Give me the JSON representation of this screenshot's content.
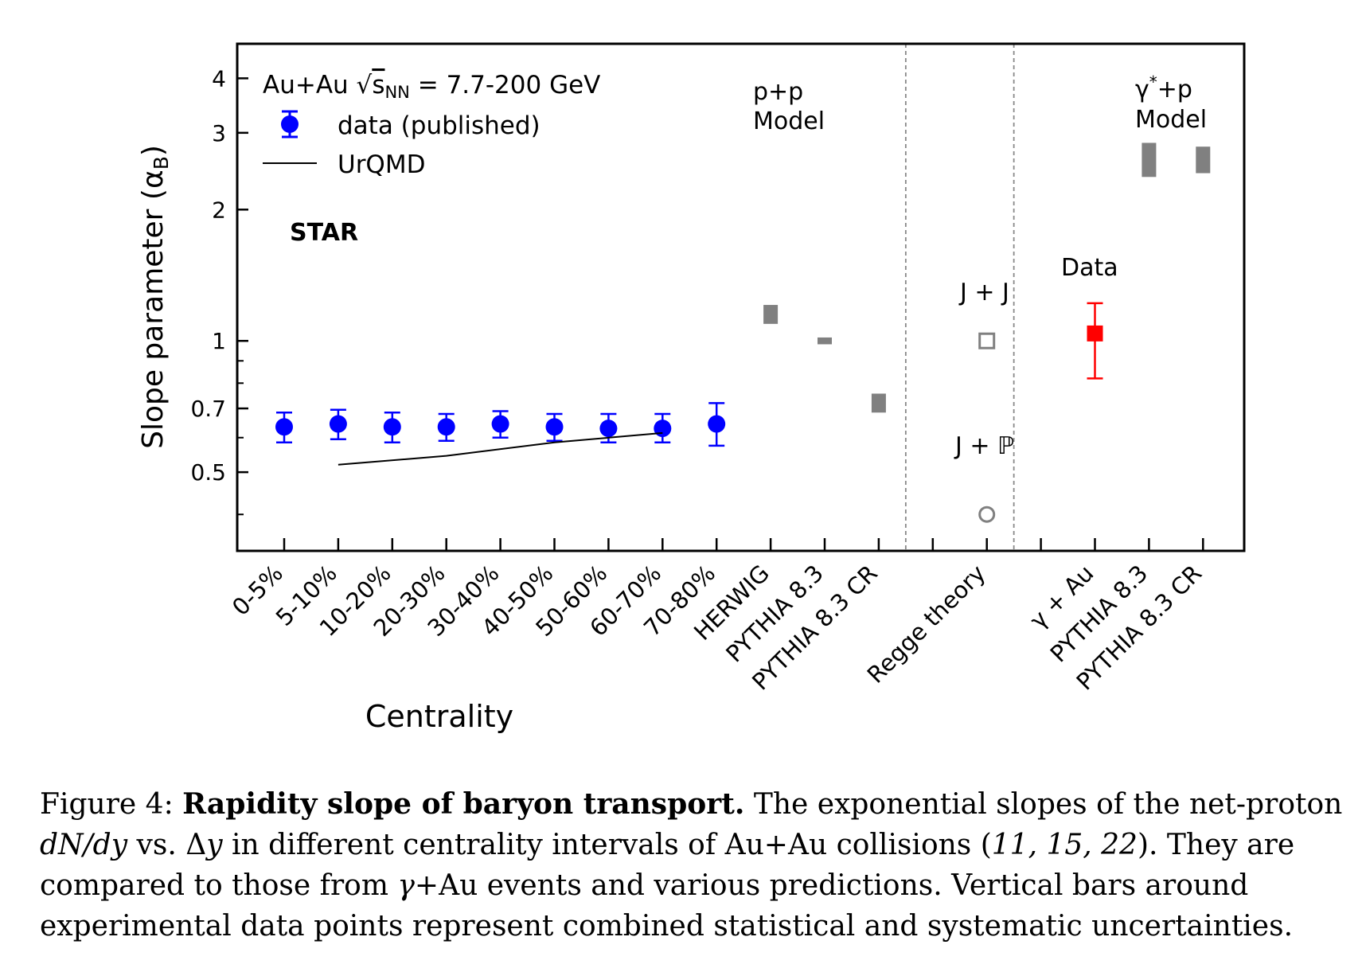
{
  "chart_data": {
    "type": "scatter",
    "y_scale": "log",
    "ylim": [
      0.33,
      4.8
    ],
    "ylabel": "Slope parameter (α",
    "ylabel_sub": "B",
    "ylabel_close": ")",
    "xlabel": "Centrality",
    "y_ticks": [
      {
        "value": 4,
        "label": "4"
      },
      {
        "value": 3,
        "label": "3"
      },
      {
        "value": 2,
        "label": "2"
      },
      {
        "value": 1,
        "label": "1"
      },
      {
        "value": 0.7,
        "label": "0.7"
      },
      {
        "value": 0.5,
        "label": "0.5"
      }
    ],
    "y_minor_ticks": [
      0.4,
      0.6,
      0.8,
      0.9
    ],
    "categories": [
      "0-5%",
      "5-10%",
      "10-20%",
      "20-30%",
      "30-40%",
      "40-50%",
      "50-60%",
      "60-70%",
      "70-80%",
      "HERWIG",
      "PYTHIA 8.3",
      "PYTHIA 8.3 CR",
      "",
      "Regge theory",
      "",
      "γ + Au",
      "PYTHIA 8.3",
      "PYTHIA 8.3 CR"
    ],
    "separators_after_index": [
      11.5,
      13.5
    ],
    "series": [
      {
        "name": "data (published)",
        "marker": "circle",
        "color": "#0000ff",
        "points": [
          {
            "x": 0,
            "y": 0.635,
            "lo": 0.585,
            "hi": 0.685
          },
          {
            "x": 1,
            "y": 0.645,
            "lo": 0.595,
            "hi": 0.695
          },
          {
            "x": 2,
            "y": 0.635,
            "lo": 0.585,
            "hi": 0.685
          },
          {
            "x": 3,
            "y": 0.635,
            "lo": 0.59,
            "hi": 0.68
          },
          {
            "x": 4,
            "y": 0.645,
            "lo": 0.6,
            "hi": 0.69
          },
          {
            "x": 5,
            "y": 0.635,
            "lo": 0.59,
            "hi": 0.68
          },
          {
            "x": 6,
            "y": 0.63,
            "lo": 0.585,
            "hi": 0.68
          },
          {
            "x": 7,
            "y": 0.63,
            "lo": 0.585,
            "hi": 0.68
          },
          {
            "x": 8,
            "y": 0.645,
            "lo": 0.575,
            "hi": 0.72
          }
        ]
      },
      {
        "name": "UrQMD",
        "marker": "line",
        "color": "#000000",
        "points": [
          {
            "x": 1,
            "y": 0.52
          },
          {
            "x": 3,
            "y": 0.545
          },
          {
            "x": 5,
            "y": 0.585
          },
          {
            "x": 7,
            "y": 0.615
          }
        ]
      },
      {
        "name": "p+p Model",
        "marker": "gray-square",
        "color": "#808080",
        "points": [
          {
            "x": 9,
            "y": 1.15,
            "h": 0.05
          },
          {
            "x": 10,
            "y": 1.0,
            "h": 0.018
          },
          {
            "x": 11,
            "y": 0.72,
            "h": 0.05
          }
        ]
      },
      {
        "name": "J + J",
        "marker": "open-square",
        "color": "#808080",
        "points": [
          {
            "x": 13,
            "y": 1.0
          }
        ]
      },
      {
        "name": "J + ℙ",
        "marker": "open-circle",
        "color": "#808080",
        "points": [
          {
            "x": 13,
            "y": 0.4
          }
        ]
      },
      {
        "name": "Data",
        "marker": "square",
        "color": "#ff0000",
        "points": [
          {
            "x": 15,
            "y": 1.04,
            "lo": 0.82,
            "hi": 1.22
          }
        ]
      },
      {
        "name": "γ* +p Model",
        "marker": "gray-square",
        "color": "#808080",
        "points": [
          {
            "x": 16,
            "y": 2.6,
            "h": 0.09
          },
          {
            "x": 17,
            "y": 2.6,
            "h": 0.07
          }
        ]
      }
    ],
    "legend": {
      "title_prefix": "Au+Au ",
      "sqrt": "√",
      "s": "s",
      "sub": "NN",
      "title_suffix": "  = 7.7-200 GeV",
      "entry_data": "data (published)",
      "entry_urqmd": "UrQMD",
      "position": "top-left"
    },
    "annotations": {
      "star": "STAR",
      "pp_line1": "p+p",
      "pp_line2": "Model",
      "jj": "J + J",
      "jp": "J + ℙ",
      "data": "Data",
      "gp_line1": "γ",
      "gp_star": "*",
      "gp_line1_rest": "+p",
      "gp_line2": "Model"
    },
    "grid": false
  },
  "caption": {
    "lead": "Figure 4: ",
    "bold": "Rapidity slope of baryon transport.",
    "text1": " The exponential slopes of the net-proton ",
    "math1": "dN/dy",
    "text2": " vs. Δ",
    "math2": "y",
    "text3": " in different centrality intervals of Au+Au collisions (",
    "refs": "11, 15, 22",
    "text4": "). They are compared to those from ",
    "math3": "γ",
    "text5": "+Au events and various predictions. Vertical bars around experimental data points represent combined statistical and systematic uncertainties."
  }
}
